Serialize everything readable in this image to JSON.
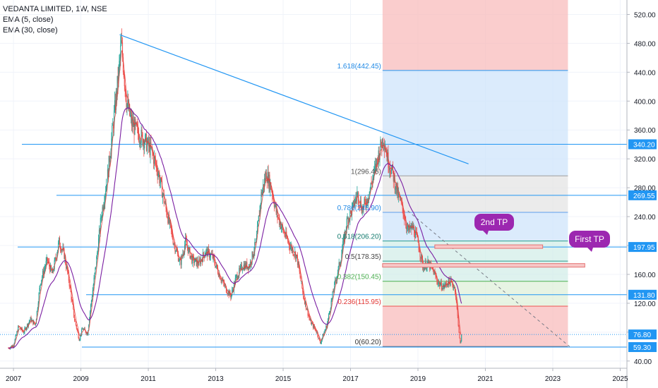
{
  "legend": {
    "symbol": "VEDANTA LIMITED, 1W, NSE",
    "ema_fast": "EMA (5, close)",
    "ema_slow": "EMA (30, close)"
  },
  "colors": {
    "hline": "#2196f3",
    "trendline": "#2196f3",
    "candle_up": "#26a69a",
    "candle_down": "#ef5350",
    "ema_fast": "#e53935",
    "ema_slow": "#7b1fa2",
    "axis_text": "#131722",
    "price_badge": "#2196f3",
    "callout": "#9c27b0",
    "zone_red": "#f8bcbc",
    "zone_blue": "#cfe4fb",
    "zone_grey": "#e4e4e4",
    "zone_teal": "#d3ede8",
    "zone_green": "#dff0da"
  },
  "chart_data": {
    "type": "candlestick",
    "title": "VEDANTA LIMITED, 1W, NSE",
    "ylim": [
      30,
      540
    ],
    "xlim": [
      2006.6,
      2025.2
    ],
    "y_ticks": [
      "40.00",
      "80.00",
      "120.00",
      "160.00",
      "200.00",
      "240.00",
      "280.00",
      "320.00",
      "360.00",
      "400.00",
      "440.00",
      "480.00",
      "520.00"
    ],
    "x_ticks": [
      "2007",
      "2009",
      "2011",
      "2013",
      "2015",
      "2017",
      "2019",
      "2021",
      "2023",
      "2025"
    ],
    "price_series": [
      [
        2006.85,
        58
      ],
      [
        2007.0,
        62
      ],
      [
        2007.15,
        88
      ],
      [
        2007.3,
        80
      ],
      [
        2007.5,
        98
      ],
      [
        2007.65,
        90
      ],
      [
        2007.8,
        150
      ],
      [
        2008.0,
        180
      ],
      [
        2008.15,
        160
      ],
      [
        2008.35,
        205
      ],
      [
        2008.5,
        188
      ],
      [
        2008.65,
        150
      ],
      [
        2008.8,
        100
      ],
      [
        2008.95,
        70
      ],
      [
        2009.05,
        85
      ],
      [
        2009.2,
        78
      ],
      [
        2009.3,
        120
      ],
      [
        2009.45,
        175
      ],
      [
        2009.6,
        240
      ],
      [
        2009.8,
        300
      ],
      [
        2009.95,
        365
      ],
      [
        2010.1,
        430
      ],
      [
        2010.2,
        480
      ],
      [
        2010.35,
        400
      ],
      [
        2010.5,
        370
      ],
      [
        2010.7,
        355
      ],
      [
        2010.9,
        345
      ],
      [
        2011.1,
        330
      ],
      [
        2011.3,
        300
      ],
      [
        2011.5,
        255
      ],
      [
        2011.75,
        205
      ],
      [
        2011.95,
        175
      ],
      [
        2012.1,
        205
      ],
      [
        2012.3,
        180
      ],
      [
        2012.5,
        175
      ],
      [
        2012.7,
        192
      ],
      [
        2012.9,
        185
      ],
      [
        2013.1,
        160
      ],
      [
        2013.3,
        140
      ],
      [
        2013.45,
        130
      ],
      [
        2013.6,
        155
      ],
      [
        2013.8,
        172
      ],
      [
        2014.0,
        172
      ],
      [
        2014.2,
        205
      ],
      [
        2014.35,
        270
      ],
      [
        2014.5,
        300
      ],
      [
        2014.65,
        280
      ],
      [
        2014.8,
        245
      ],
      [
        2015.0,
        220
      ],
      [
        2015.2,
        200
      ],
      [
        2015.4,
        185
      ],
      [
        2015.6,
        130
      ],
      [
        2015.8,
        95
      ],
      [
        2016.0,
        80
      ],
      [
        2016.1,
        65
      ],
      [
        2016.3,
        90
      ],
      [
        2016.5,
        140
      ],
      [
        2016.7,
        180
      ],
      [
        2016.9,
        235
      ],
      [
        2017.05,
        250
      ],
      [
        2017.2,
        272
      ],
      [
        2017.35,
        250
      ],
      [
        2017.5,
        265
      ],
      [
        2017.7,
        300
      ],
      [
        2017.85,
        330
      ],
      [
        2017.98,
        350
      ],
      [
        2018.1,
        320
      ],
      [
        2018.25,
        300
      ],
      [
        2018.4,
        270
      ],
      [
        2018.55,
        250
      ],
      [
        2018.7,
        220
      ],
      [
        2018.85,
        225
      ],
      [
        2019.0,
        205
      ],
      [
        2019.15,
        170
      ],
      [
        2019.3,
        175
      ],
      [
        2019.45,
        165
      ],
      [
        2019.6,
        148
      ],
      [
        2019.75,
        142
      ],
      [
        2019.9,
        150
      ],
      [
        2020.0,
        148
      ],
      [
        2020.1,
        140
      ],
      [
        2020.2,
        90
      ],
      [
        2020.25,
        62
      ],
      [
        2020.3,
        76.8
      ]
    ],
    "ema_fast": {
      "name": "EMA (5, close)"
    },
    "ema_slow": {
      "name": "EMA (30, close)"
    },
    "horizontal_levels": [
      {
        "value": 340.2,
        "label": "340.20"
      },
      {
        "value": 269.55,
        "label": "269.55"
      },
      {
        "value": 197.95,
        "label": "197.95"
      },
      {
        "value": 131.8,
        "label": "131.80"
      },
      {
        "value": 59.3,
        "label": "59.30"
      }
    ],
    "current_price": {
      "value": 76.8,
      "label": "76.80"
    },
    "trendline": {
      "from": [
        2010.15,
        492
      ],
      "to": [
        2020.5,
        313
      ]
    },
    "projection_line": {
      "from": [
        2018.7,
        248
      ],
      "to": [
        2023.5,
        60
      ]
    },
    "fib_levels": [
      {
        "value": 442.45,
        "label": "1.618(442.45)"
      },
      {
        "value": 296.45,
        "label": "1(296.45)"
      },
      {
        "value": 245.9,
        "label": "0.786(245.90)"
      },
      {
        "value": 206.2,
        "label": "0.618(206.20)"
      },
      {
        "value": 178.35,
        "label": "0.5(178.35)"
      },
      {
        "value": 150.45,
        "label": "0.382(150.45)"
      },
      {
        "value": 115.95,
        "label": "0.236(115.95)"
      },
      {
        "value": 60.2,
        "label": "0(60.20)"
      }
    ],
    "fib_range": {
      "x_start": 2017.95,
      "x_end": 2023.45
    },
    "targets": [
      {
        "label": "2nd TP",
        "level": 197.95,
        "x_start": 2019.5,
        "x_end": 2022.7
      },
      {
        "label": "First TP",
        "level": 172.0,
        "x_start": 2017.95,
        "x_end": 2023.95
      }
    ]
  }
}
